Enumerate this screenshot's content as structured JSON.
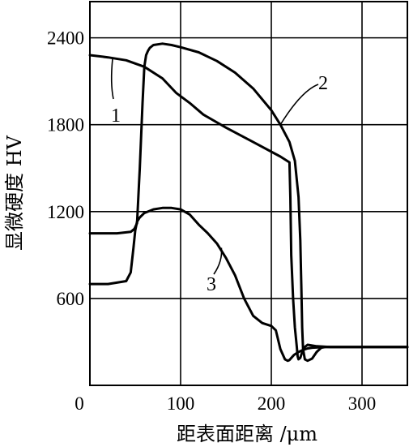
{
  "chart_data": {
    "type": "line",
    "xlabel": "距表面距离 /μm",
    "ylabel": "显微硬度 HV",
    "xlim": [
      0,
      350
    ],
    "ylim": [
      0,
      2650
    ],
    "x_ticks": [
      0,
      100,
      200,
      300
    ],
    "y_ticks": [
      600,
      1200,
      1800,
      2400
    ],
    "grid": true,
    "series": [
      {
        "name": "1",
        "x": [
          0,
          20,
          40,
          60,
          80,
          95,
          110,
          125,
          150,
          180,
          210,
          220,
          221,
          222,
          224,
          226,
          228,
          229,
          230,
          232,
          234,
          236,
          240,
          250,
          265,
          280,
          300,
          320,
          350
        ],
        "y": [
          2280,
          2265,
          2245,
          2200,
          2120,
          2020,
          1950,
          1870,
          1780,
          1680,
          1580,
          1540,
          1300,
          900,
          600,
          400,
          270,
          200,
          180,
          190,
          230,
          260,
          280,
          270,
          265,
          265,
          265,
          265,
          265
        ]
      },
      {
        "name": "2",
        "x": [
          0,
          30,
          45,
          49,
          52,
          55,
          58,
          60,
          62,
          64,
          66,
          70,
          80,
          90,
          100,
          120,
          140,
          160,
          180,
          200,
          210,
          220,
          226,
          230,
          232,
          233,
          234,
          235,
          237,
          240,
          245,
          250,
          255,
          260,
          280,
          300,
          320,
          350
        ],
        "y": [
          1050,
          1050,
          1060,
          1080,
          1120,
          1500,
          1950,
          2200,
          2280,
          2310,
          2330,
          2350,
          2360,
          2350,
          2335,
          2300,
          2240,
          2160,
          2050,
          1900,
          1800,
          1680,
          1550,
          1300,
          1000,
          700,
          400,
          250,
          180,
          170,
          185,
          230,
          260,
          265,
          265,
          265,
          265,
          265
        ]
      },
      {
        "name": "3",
        "x": [
          0,
          20,
          40,
          45,
          48,
          50,
          52,
          55,
          60,
          70,
          80,
          90,
          100,
          110,
          120,
          130,
          140,
          150,
          160,
          170,
          180,
          190,
          200,
          205,
          210,
          215,
          218,
          220,
          225,
          230,
          235,
          240,
          245,
          260,
          280,
          300,
          320,
          350
        ],
        "y": [
          700,
          700,
          720,
          780,
          950,
          1070,
          1130,
          1160,
          1190,
          1215,
          1225,
          1225,
          1215,
          1180,
          1110,
          1050,
          980,
          880,
          760,
          600,
          480,
          430,
          410,
          380,
          250,
          180,
          170,
          175,
          210,
          230,
          245,
          255,
          260,
          265,
          265,
          265,
          265,
          265
        ]
      }
    ]
  }
}
